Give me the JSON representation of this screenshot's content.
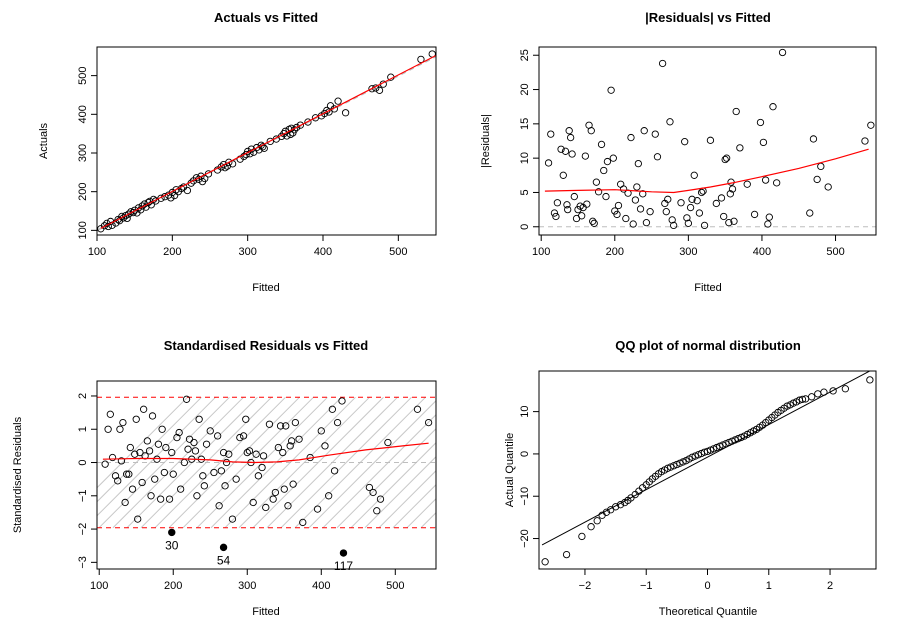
{
  "chart_data": [
    {
      "type": "scatter",
      "title": "Actuals vs Fitted",
      "xlabel": "Fitted",
      "ylabel": "Actuals",
      "xlim": [
        100,
        550
      ],
      "ylim": [
        100,
        560
      ],
      "xticks": [
        100,
        200,
        300,
        400,
        500
      ],
      "yticks": [
        100,
        200,
        300,
        400,
        500
      ],
      "reference_line": {
        "type": "identity",
        "color": "#bebebe",
        "style": "dashed"
      },
      "smoother_color": "#ff0000",
      "smoother": {
        "x": [
          105,
          550
        ],
        "y": [
          105,
          552
        ]
      },
      "points": {
        "x": [
          105,
          110,
          113,
          115,
          118,
          120,
          125,
          128,
          130,
          133,
          135,
          138,
          140,
          142,
          145,
          148,
          150,
          153,
          155,
          158,
          160,
          163,
          165,
          168,
          170,
          172,
          175,
          178,
          185,
          190,
          195,
          198,
          200,
          203,
          205,
          208,
          212,
          215,
          220,
          225,
          228,
          232,
          235,
          238,
          240,
          243,
          248,
          260,
          265,
          268,
          270,
          273,
          275,
          280,
          290,
          295,
          298,
          300,
          303,
          305,
          308,
          312,
          315,
          318,
          320,
          322,
          330,
          338,
          345,
          348,
          350,
          352,
          355,
          357,
          358,
          360,
          362,
          365,
          370,
          380,
          390,
          398,
          402,
          405,
          408,
          410,
          415,
          420,
          430,
          465,
          470,
          475,
          480,
          490,
          530,
          545
        ],
        "y": [
          104,
          112,
          118,
          110,
          123,
          113,
          119,
          128,
          125,
          136,
          132,
          138,
          131,
          142,
          148,
          146,
          152,
          145,
          158,
          153,
          163,
          168,
          160,
          172,
          175,
          166,
          180,
          176,
          183,
          187,
          191,
          184,
          198,
          190,
          205,
          200,
          208,
          212,
          203,
          222,
          228,
          236,
          232,
          240,
          226,
          234,
          246,
          256,
          264,
          270,
          262,
          266,
          276,
          272,
          284,
          291,
          296,
          304,
          298,
          310,
          302,
          314,
          308,
          320,
          316,
          312,
          330,
          336,
          343,
          350,
          356,
          344,
          361,
          348,
          364,
          352,
          360,
          366,
          372,
          380,
          391,
          396,
          402,
          410,
          406,
          422,
          414,
          434,
          404,
          466,
          468,
          462,
          478,
          496,
          542,
          556
        ]
      }
    },
    {
      "type": "scatter",
      "title": "|Residuals| vs Fitted",
      "xlabel": "Fitted",
      "ylabel": "|Residuals|",
      "xlim": [
        100,
        550
      ],
      "ylim": [
        0,
        25
      ],
      "xticks": [
        100,
        200,
        300,
        400,
        500
      ],
      "yticks": [
        0,
        5,
        10,
        15,
        20,
        25
      ],
      "reference_line": {
        "type": "horizontal",
        "y": 0,
        "color": "#bebebe",
        "style": "dashed"
      },
      "smoother_color": "#ff0000",
      "smoother": {
        "x": [
          105,
          150,
          200,
          250,
          280,
          300,
          330,
          360,
          400,
          450,
          500,
          545
        ],
        "y": [
          5.2,
          5.3,
          5.4,
          5.1,
          5.0,
          5.3,
          5.8,
          6.4,
          7.3,
          8.5,
          9.9,
          11.3
        ]
      },
      "points": {
        "x": [
          110,
          113,
          118,
          120,
          122,
          127,
          130,
          133,
          135,
          136,
          138,
          140,
          142,
          145,
          148,
          150,
          153,
          155,
          157,
          160,
          162,
          165,
          168,
          170,
          172,
          175,
          178,
          182,
          185,
          188,
          190,
          195,
          198,
          200,
          203,
          205,
          208,
          212,
          215,
          218,
          222,
          225,
          228,
          230,
          232,
          235,
          238,
          240,
          243,
          248,
          255,
          258,
          265,
          268,
          270,
          272,
          275,
          278,
          280,
          290,
          295,
          298,
          300,
          303,
          305,
          308,
          312,
          315,
          318,
          320,
          322,
          330,
          338,
          345,
          348,
          350,
          352,
          355,
          357,
          358,
          360,
          362,
          365,
          370,
          380,
          390,
          398,
          402,
          405,
          408,
          410,
          415,
          420,
          428,
          465,
          470,
          475,
          480,
          490,
          540,
          548
        ],
        "y": [
          9.3,
          13.5,
          2.0,
          1.5,
          3.5,
          11.3,
          7.5,
          11.0,
          3.2,
          2.5,
          14.0,
          13.0,
          10.6,
          4.4,
          1.2,
          2.5,
          3.0,
          1.6,
          2.8,
          10.3,
          3.3,
          14.8,
          14.0,
          0.8,
          0.5,
          6.5,
          5.1,
          12.0,
          8.2,
          4.4,
          9.5,
          19.9,
          10.0,
          2.3,
          1.8,
          3.1,
          6.2,
          5.5,
          1.2,
          4.9,
          13.0,
          0.4,
          3.9,
          5.8,
          9.2,
          2.6,
          4.8,
          14.0,
          0.6,
          2.2,
          13.5,
          10.2,
          23.8,
          3.4,
          2.2,
          4.0,
          15.3,
          1.0,
          0.2,
          3.5,
          12.4,
          1.3,
          0.5,
          2.8,
          4.0,
          7.5,
          3.8,
          2.0,
          5.0,
          5.2,
          0.2,
          12.6,
          3.4,
          4.2,
          1.5,
          9.8,
          10.0,
          0.6,
          4.8,
          6.5,
          5.5,
          0.8,
          16.8,
          11.5,
          6.2,
          1.8,
          15.2,
          12.3,
          6.8,
          0.4,
          1.4,
          17.5,
          6.4,
          25.4,
          2.0,
          12.8,
          6.9,
          8.8,
          5.8,
          12.5,
          14.8
        ]
      }
    },
    {
      "type": "scatter",
      "title": "Standardised Residuals vs Fitted",
      "xlabel": "Fitted",
      "ylabel": "Standardised Residuals",
      "xlim": [
        100,
        550
      ],
      "ylim": [
        -3,
        2
      ],
      "xticks": [
        100,
        200,
        300,
        400,
        500
      ],
      "yticks": [
        -3,
        -2,
        -1,
        0,
        1,
        2
      ],
      "bands": [
        -1.96,
        1.96
      ],
      "band_color": "#ff0000",
      "hatch": true,
      "reference_line": {
        "type": "horizontal",
        "y": 0,
        "color": "#bebebe",
        "style": "dashed"
      },
      "smoother_color": "#ff0000",
      "smoother": {
        "x": [
          105,
          150,
          200,
          250,
          280,
          310,
          340,
          370,
          410,
          460,
          510,
          545
        ],
        "y": [
          0.1,
          0.12,
          0.12,
          0.08,
          0.02,
          0.0,
          0.02,
          0.08,
          0.22,
          0.38,
          0.5,
          0.58
        ]
      },
      "points": {
        "x": [
          108,
          112,
          115,
          118,
          122,
          125,
          128,
          130,
          132,
          135,
          137,
          140,
          142,
          145,
          148,
          150,
          152,
          155,
          158,
          160,
          162,
          165,
          168,
          170,
          172,
          175,
          178,
          180,
          183,
          185,
          188,
          190,
          195,
          198,
          200,
          205,
          208,
          210,
          215,
          218,
          220,
          222,
          225,
          228,
          230,
          232,
          235,
          238,
          240,
          242,
          245,
          250,
          255,
          260,
          262,
          265,
          268,
          270,
          272,
          275,
          280,
          285,
          290,
          295,
          298,
          300,
          303,
          305,
          308,
          312,
          315,
          320,
          322,
          325,
          330,
          335,
          338,
          342,
          345,
          348,
          350,
          352,
          355,
          358,
          360,
          362,
          365,
          370,
          375,
          385,
          395,
          400,
          405,
          410,
          415,
          418,
          422,
          428,
          465,
          470,
          475,
          480,
          490,
          530,
          545
        ],
        "y": [
          -0.05,
          1.0,
          1.45,
          0.15,
          -0.4,
          -0.55,
          1.0,
          0.05,
          1.2,
          -1.2,
          -0.35,
          -0.35,
          0.45,
          -0.8,
          0.25,
          1.3,
          -1.7,
          0.3,
          -0.6,
          1.6,
          0.2,
          0.65,
          0.35,
          -1.0,
          1.4,
          -0.5,
          0.1,
          0.55,
          -1.1,
          1.0,
          -0.3,
          0.45,
          -1.1,
          0.3,
          -0.35,
          0.75,
          0.9,
          -0.8,
          0.0,
          1.9,
          0.4,
          0.7,
          0.1,
          0.6,
          0.35,
          -1.0,
          1.3,
          0.1,
          -0.4,
          -0.7,
          0.55,
          0.95,
          -0.3,
          0.8,
          -1.3,
          -0.25,
          0.3,
          -0.7,
          0.0,
          0.25,
          -1.7,
          -0.5,
          0.75,
          0.8,
          1.3,
          0.3,
          0.35,
          0.0,
          -1.2,
          0.25,
          -0.4,
          -0.15,
          0.2,
          -1.35,
          1.15,
          -1.1,
          -0.9,
          0.45,
          1.1,
          0.3,
          -0.8,
          1.1,
          -1.3,
          0.5,
          0.65,
          -0.65,
          1.2,
          0.7,
          -1.8,
          0.15,
          -1.4,
          0.95,
          0.5,
          -1.0,
          1.6,
          -0.25,
          1.2,
          1.85,
          -0.75,
          -0.9,
          -1.45,
          -1.1,
          0.6,
          1.6,
          1.2
        ]
      },
      "labelled_points": [
        {
          "label": "30",
          "x": 198,
          "y": -2.1
        },
        {
          "label": "54",
          "x": 268,
          "y": -2.55
        },
        {
          "label": "117",
          "x": 430,
          "y": -2.72
        }
      ]
    },
    {
      "type": "scatter",
      "title": "QQ plot of normal distribution",
      "xlabel": "Theoretical Quantile",
      "ylabel": "Actual Quantile",
      "xlim": [
        -2.7,
        2.7
      ],
      "ylim": [
        -26,
        19
      ],
      "xticks": [
        -2,
        -1,
        0,
        1,
        2
      ],
      "yticks": [
        -20,
        -10,
        0,
        10
      ],
      "reference_line": {
        "type": "qqline",
        "x": [
          -2.7,
          2.7
        ],
        "y": [
          -21.5,
          20.0
        ],
        "color": "#000000",
        "style": "solid"
      },
      "points": {
        "x": [
          -2.65,
          -2.3,
          -2.05,
          -1.9,
          -1.8,
          -1.72,
          -1.65,
          -1.58,
          -1.5,
          -1.42,
          -1.35,
          -1.3,
          -1.25,
          -1.18,
          -1.12,
          -1.06,
          -1.0,
          -0.95,
          -0.9,
          -0.85,
          -0.8,
          -0.75,
          -0.7,
          -0.65,
          -0.6,
          -0.55,
          -0.5,
          -0.45,
          -0.4,
          -0.35,
          -0.3,
          -0.25,
          -0.2,
          -0.15,
          -0.1,
          -0.05,
          0.0,
          0.05,
          0.1,
          0.15,
          0.2,
          0.25,
          0.3,
          0.35,
          0.4,
          0.45,
          0.5,
          0.55,
          0.6,
          0.65,
          0.7,
          0.75,
          0.8,
          0.85,
          0.9,
          0.95,
          1.0,
          1.05,
          1.1,
          1.15,
          1.2,
          1.25,
          1.3,
          1.35,
          1.4,
          1.45,
          1.5,
          1.55,
          1.6,
          1.7,
          1.8,
          1.9,
          2.05,
          2.25,
          2.65
        ],
        "y": [
          -25.5,
          -23.8,
          -19.5,
          -17.2,
          -15.8,
          -14.5,
          -13.8,
          -13.2,
          -12.5,
          -12.0,
          -11.5,
          -11.0,
          -10.4,
          -9.6,
          -8.8,
          -8.0,
          -7.3,
          -6.6,
          -5.9,
          -5.3,
          -4.7,
          -4.2,
          -3.8,
          -3.4,
          -3.1,
          -2.8,
          -2.5,
          -2.2,
          -1.9,
          -1.6,
          -1.2,
          -0.8,
          -0.5,
          -0.2,
          0.1,
          0.4,
          0.6,
          0.9,
          1.2,
          1.5,
          1.8,
          2.1,
          2.4,
          2.7,
          3.0,
          3.3,
          3.6,
          3.9,
          4.2,
          4.6,
          5.0,
          5.4,
          5.8,
          6.3,
          6.8,
          7.4,
          8.0,
          8.6,
          9.2,
          9.8,
          10.3,
          10.8,
          11.3,
          11.6,
          12.0,
          12.3,
          12.7,
          12.9,
          13.0,
          13.5,
          14.2,
          14.6,
          14.9,
          15.4,
          17.5
        ]
      }
    }
  ]
}
